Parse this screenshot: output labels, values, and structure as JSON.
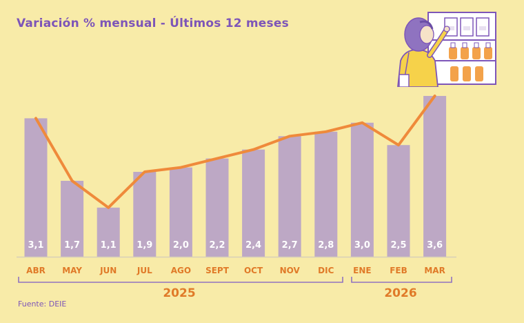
{
  "chart_data": {
    "type": "bar",
    "title": "Variación % mensual - Últimos 12 meses",
    "categories": [
      "ABR",
      "MAY",
      "JUN",
      "JUL",
      "AGO",
      "SEPT",
      "OCT",
      "NOV",
      "DIC",
      "ENE",
      "FEB",
      "MAR"
    ],
    "values": [
      3.1,
      1.7,
      1.1,
      1.9,
      2.0,
      2.2,
      2.4,
      2.7,
      2.8,
      3.0,
      2.5,
      3.6
    ],
    "value_labels": [
      "3,1",
      "1,7",
      "1,1",
      "1,9",
      "2,0",
      "2,2",
      "2,4",
      "2,7",
      "2,8",
      "3,0",
      "2,5",
      "3,6"
    ],
    "series": [
      {
        "type": "bar",
        "values": [
          3.1,
          1.7,
          1.1,
          1.9,
          2.0,
          2.2,
          2.4,
          2.7,
          2.8,
          3.0,
          2.5,
          3.6
        ]
      },
      {
        "type": "line",
        "values": [
          3.1,
          1.7,
          1.1,
          1.9,
          2.0,
          2.2,
          2.4,
          2.7,
          2.8,
          3.0,
          2.5,
          3.6
        ]
      }
    ],
    "groups": [
      {
        "label": "2025",
        "categories": [
          "ABR",
          "MAY",
          "JUN",
          "JUL",
          "AGO",
          "SEPT",
          "OCT",
          "NOV",
          "DIC"
        ]
      },
      {
        "label": "2026",
        "categories": [
          "ENE",
          "FEB",
          "MAR"
        ]
      }
    ],
    "ylim": [
      0,
      3.9
    ],
    "grid": false,
    "legend": "none",
    "xlabel": "",
    "ylabel": ""
  },
  "source": "Fuente: DEIE",
  "colors": {
    "background": "#f8eba8",
    "bar": "#bda8c5",
    "line": "#ef8a3b",
    "title": "#7d55b8",
    "tick": "#e07a28",
    "bracket": "#8f73c0"
  },
  "illustration": {
    "icon": "shopper-at-supermarket-shelf-icon"
  }
}
